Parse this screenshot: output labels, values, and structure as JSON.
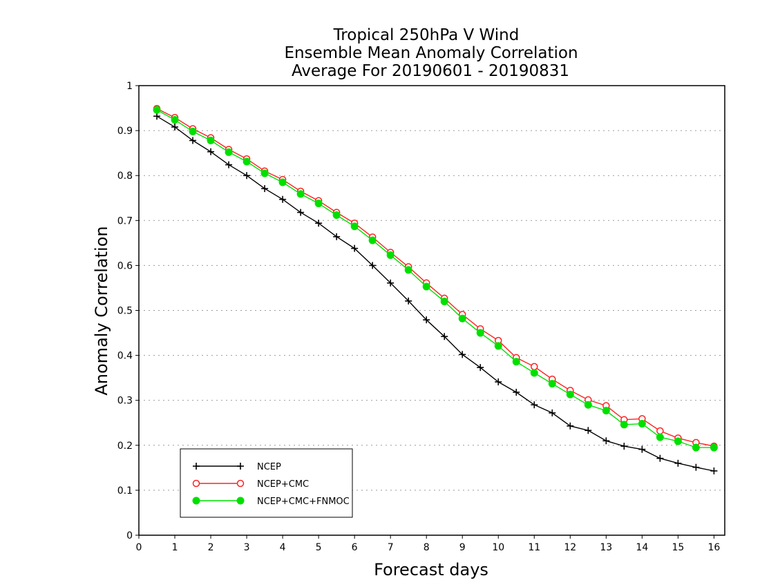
{
  "chart_data": {
    "type": "line",
    "title": [
      "Tropical 250hPa V Wind",
      "Ensemble Mean Anomaly Correlation",
      "Average For 20190601 - 20190831"
    ],
    "xlabel": "Forecast days",
    "ylabel": "Anomaly Correlation",
    "xlim": [
      0,
      16.3
    ],
    "ylim": [
      0,
      1
    ],
    "xticks": [
      0,
      1,
      2,
      3,
      4,
      5,
      6,
      7,
      8,
      9,
      10,
      11,
      12,
      13,
      14,
      15,
      16
    ],
    "xtick_labels": [
      "0",
      "1",
      "2",
      "3",
      "4",
      "5",
      "6",
      "7",
      "8",
      "9",
      "10",
      "11",
      "12",
      "13",
      "14",
      "15",
      "16"
    ],
    "yticks": [
      0,
      0.1,
      0.2,
      0.3,
      0.4,
      0.5,
      0.6,
      0.7,
      0.8,
      0.9,
      1
    ],
    "ytick_labels": [
      "0",
      "0.1",
      "0.2",
      "0.3",
      "0.4",
      "0.5",
      "0.6",
      "0.7",
      "0.8",
      "0.9",
      "1"
    ],
    "grid": "horizontal-dotted",
    "legend_position": "bottom-left",
    "x": [
      0.5,
      1,
      1.5,
      2,
      2.5,
      3,
      3.5,
      4,
      4.5,
      5,
      5.5,
      6,
      6.5,
      7,
      7.5,
      8,
      8.5,
      9,
      9.5,
      10,
      10.5,
      11,
      11.5,
      12,
      12.5,
      13,
      13.5,
      14,
      14.5,
      15,
      15.5,
      16
    ],
    "series": [
      {
        "name": "NCEP",
        "color": "#000000",
        "marker": "plus",
        "values": [
          0.932,
          0.908,
          0.878,
          0.853,
          0.824,
          0.8,
          0.771,
          0.747,
          0.718,
          0.694,
          0.664,
          0.638,
          0.6,
          0.561,
          0.521,
          0.479,
          0.442,
          0.402,
          0.373,
          0.341,
          0.318,
          0.29,
          0.272,
          0.243,
          0.233,
          0.21,
          0.198,
          0.191,
          0.171,
          0.16,
          0.151,
          0.143
        ]
      },
      {
        "name": "NCEP+CMC",
        "color": "#ff2020",
        "marker": "open-circle",
        "values": [
          0.949,
          0.929,
          0.904,
          0.884,
          0.858,
          0.837,
          0.81,
          0.791,
          0.765,
          0.744,
          0.718,
          0.694,
          0.663,
          0.629,
          0.597,
          0.561,
          0.527,
          0.491,
          0.459,
          0.433,
          0.395,
          0.375,
          0.347,
          0.322,
          0.301,
          0.288,
          0.257,
          0.259,
          0.232,
          0.216,
          0.206,
          0.198
        ]
      },
      {
        "name": "NCEP+CMC+FNMOC",
        "color": "#00e000",
        "marker": "filled-circle",
        "values": [
          0.946,
          0.924,
          0.898,
          0.878,
          0.852,
          0.831,
          0.805,
          0.785,
          0.759,
          0.738,
          0.712,
          0.687,
          0.656,
          0.623,
          0.59,
          0.553,
          0.52,
          0.482,
          0.45,
          0.421,
          0.386,
          0.361,
          0.337,
          0.313,
          0.29,
          0.277,
          0.246,
          0.248,
          0.218,
          0.209,
          0.195,
          0.195
        ]
      }
    ]
  }
}
